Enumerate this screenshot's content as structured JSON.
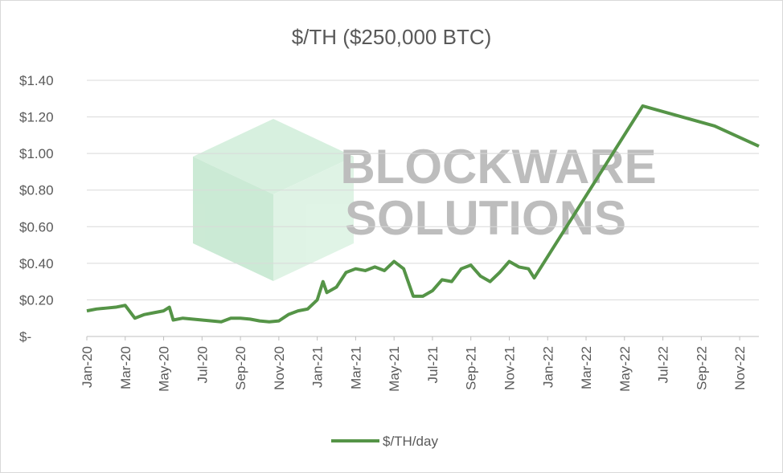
{
  "chart_data": {
    "type": "line",
    "title": "$/TH ($250,000 BTC)",
    "watermark": [
      "BLOCKWARE",
      "SOLUTIONS"
    ],
    "x": [
      0,
      0.5,
      1,
      1.5,
      2,
      2.5,
      3,
      3.5,
      4,
      4.3,
      4.5,
      5,
      5.5,
      6,
      6.5,
      7,
      7.5,
      8,
      8.5,
      9,
      9.5,
      10,
      10.5,
      11,
      11.5,
      12,
      12.3,
      12.5,
      13,
      13.5,
      14,
      14.5,
      15,
      15.5,
      16,
      16.5,
      17,
      17.5,
      18,
      18.5,
      19,
      19.5,
      20,
      20.5,
      21,
      21.5,
      22,
      22.5,
      23,
      23.3,
      28.95,
      32.7,
      35
    ],
    "series": [
      {
        "name": "$/TH/day",
        "color": "#559447",
        "values": [
          0.14,
          0.15,
          0.155,
          0.16,
          0.17,
          0.1,
          0.12,
          0.13,
          0.14,
          0.16,
          0.09,
          0.1,
          0.095,
          0.09,
          0.085,
          0.08,
          0.1,
          0.1,
          0.095,
          0.085,
          0.08,
          0.085,
          0.12,
          0.14,
          0.15,
          0.2,
          0.3,
          0.24,
          0.27,
          0.35,
          0.37,
          0.36,
          0.38,
          0.36,
          0.41,
          0.37,
          0.22,
          0.22,
          0.25,
          0.31,
          0.3,
          0.37,
          0.39,
          0.33,
          0.3,
          0.35,
          0.41,
          0.38,
          0.37,
          0.32,
          1.26,
          1.15,
          1.04
        ]
      }
    ],
    "xlim": [
      0,
      35
    ],
    "xticks": [
      {
        "value": 0,
        "label": "Jan-20"
      },
      {
        "value": 2,
        "label": "Mar-20"
      },
      {
        "value": 4,
        "label": "May-20"
      },
      {
        "value": 6,
        "label": "Jul-20"
      },
      {
        "value": 8,
        "label": "Sep-20"
      },
      {
        "value": 10,
        "label": "Nov-20"
      },
      {
        "value": 12,
        "label": "Jan-21"
      },
      {
        "value": 14,
        "label": "Mar-21"
      },
      {
        "value": 16,
        "label": "May-21"
      },
      {
        "value": 18,
        "label": "Jul-21"
      },
      {
        "value": 20,
        "label": "Sep-21"
      },
      {
        "value": 22,
        "label": "Nov-21"
      },
      {
        "value": 24,
        "label": "Jan-22"
      },
      {
        "value": 26,
        "label": "Mar-22"
      },
      {
        "value": 28,
        "label": "May-22"
      },
      {
        "value": 30,
        "label": "Jul-22"
      },
      {
        "value": 32,
        "label": "Sep-22"
      },
      {
        "value": 34,
        "label": "Nov-22"
      }
    ],
    "ylim": [
      0,
      1.4
    ],
    "yticks": [
      {
        "value": 0,
        "label": "$-"
      },
      {
        "value": 0.2,
        "label": "$0.20"
      },
      {
        "value": 0.4,
        "label": "$0.40"
      },
      {
        "value": 0.6,
        "label": "$0.60"
      },
      {
        "value": 0.8,
        "label": "$0.80"
      },
      {
        "value": 1.0,
        "label": "$1.00"
      },
      {
        "value": 1.2,
        "label": "$1.20"
      },
      {
        "value": 1.4,
        "label": "$1.40"
      }
    ],
    "grid": true,
    "legend": "bottom"
  }
}
